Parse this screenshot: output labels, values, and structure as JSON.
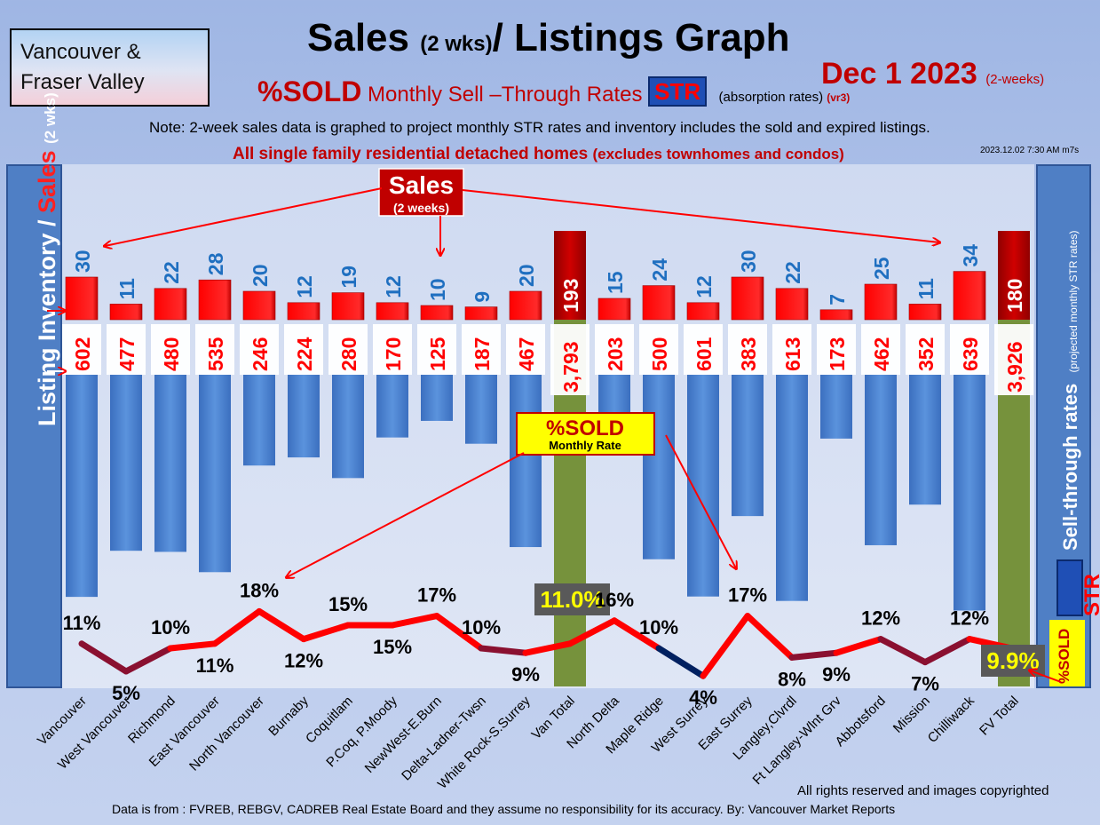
{
  "region_box": {
    "line1": "Vancouver &",
    "line2": "Fraser Valley"
  },
  "header": {
    "title_main": "Sales",
    "title_paren": "(2 wks)",
    "title_rest": "/ Listings Graph",
    "date": "Dec 1  2023",
    "date_suffix": "(2-weeks)",
    "subtitle_sold": "%SOLD",
    "subtitle_rest": " Monthly Sell –Through Rates ",
    "str": "STR",
    "absorption": "(absorption rates)",
    "version": "(vr3)",
    "note": "Note: 2-week sales data is graphed to project monthly STR rates and inventory includes the sold and expired listings.",
    "timestamp": "2023.12.02 7:30 AM m7s",
    "segment": "All single family residential detached homes",
    "segment_paren": "(excludes townhomes and condos)"
  },
  "axis_left": {
    "label_a": "Listing Inventory / ",
    "label_sales": "Sales",
    "label_b": "(2  wks)"
  },
  "axis_right": {
    "label": "Sell-through rates",
    "sub": "(projected monthly STR rates)",
    "str": "STR",
    "sold": "%SOLD"
  },
  "callouts": {
    "sales_title": "Sales",
    "sales_sub": "(2 weeks)",
    "sold_title": "%SOLD",
    "sold_sub": "Monthly Rate"
  },
  "colors": {
    "sales_bar": "#ff0000",
    "inventory_bar": "#4f8ad8",
    "total_bar": "#76923c",
    "line_high": "#ff0000",
    "line_low": "#002060"
  },
  "chart_data": {
    "type": "bar",
    "categories": [
      "Vancouver",
      "West Vancouver",
      "Richmond",
      "East Vancouver",
      "North Vancouver",
      "Burnaby",
      "Coquitlam",
      "P.Coq, P.Moody",
      "NewWest-E.Burn",
      "Delta-Ladner-Twsn",
      "White Rock-S.Surrey",
      "Van Total",
      "North Delta",
      "Maple Ridge",
      "West Surrey",
      "East Surrey",
      "Langley,Clvrdl",
      "Ft Langley-Wlnt Grv",
      "Abbotsford",
      "Mission",
      "Chilliwack",
      "FV Total"
    ],
    "totals": [
      "Van Total",
      "FV Total"
    ],
    "series": [
      {
        "name": "Sales",
        "values": [
          30,
          11,
          22,
          28,
          20,
          12,
          19,
          12,
          10,
          9,
          20,
          193,
          15,
          24,
          12,
          30,
          22,
          7,
          25,
          11,
          34,
          180
        ],
        "labels": [
          "30",
          "11",
          "22",
          "28",
          "20",
          "12",
          "19",
          "12",
          "10",
          "9",
          "20",
          "193",
          "15",
          "24",
          "12",
          "30",
          "22",
          "7",
          "25",
          "11",
          "34",
          "180"
        ]
      },
      {
        "name": "Listing Inventory",
        "values": [
          602,
          477,
          480,
          535,
          246,
          224,
          280,
          170,
          125,
          187,
          467,
          3793,
          203,
          500,
          601,
          383,
          613,
          173,
          462,
          352,
          639,
          3926
        ],
        "labels": [
          "602",
          "477",
          "480",
          "535",
          "246",
          "224",
          "280",
          "170",
          "125",
          "187",
          "467",
          "3,793",
          "203",
          "500",
          "601",
          "383",
          "613",
          "173",
          "462",
          "352",
          "639",
          "3,926"
        ]
      },
      {
        "name": "%SOLD",
        "values": [
          11,
          5,
          10,
          11,
          18,
          12,
          15,
          15,
          17,
          10,
          9,
          11.0,
          16,
          10,
          4,
          17,
          8,
          9,
          12,
          7,
          12,
          9.9
        ],
        "labels": [
          "11%",
          "5%",
          "10%",
          "11%",
          "18%",
          "12%",
          "15%",
          "15%",
          "17%",
          "10%",
          "9%",
          "11.0%",
          "16%",
          "10%",
          "4%",
          "17%",
          "8%",
          "9%",
          "12%",
          "7%",
          "12%",
          "9.9%"
        ]
      }
    ]
  },
  "footer": {
    "rights": "All rights reserved and  images copyrighted",
    "source": "Data is from : FVREB, REBGV, CADREB Real Estate Board and they assume no responsibility for its accuracy. By: Vancouver Market Reports"
  }
}
